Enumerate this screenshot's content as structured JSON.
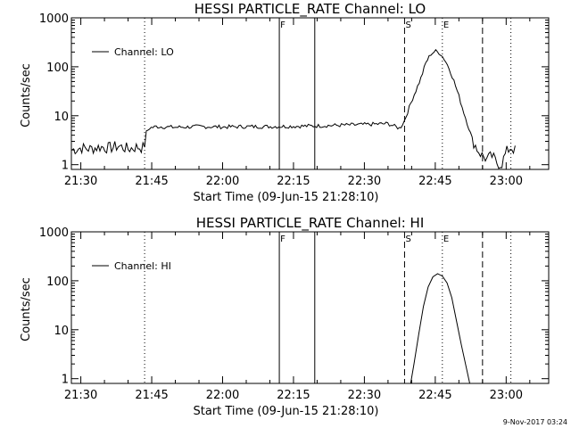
{
  "footer": {
    "date_stamp": "9-Nov-2017 03:24"
  },
  "colors": {
    "background": "#ffffff",
    "foreground": "#000000"
  },
  "chart_data": [
    {
      "type": "line",
      "title": "HESSI PARTICLE_RATE Channel: LO",
      "xlabel": "Start Time (09-Jun-15 21:28:10)",
      "ylabel": "Counts/sec",
      "y_scale": "log",
      "xlim": [
        "21:28",
        "23:09"
      ],
      "ylim": [
        0.8,
        1000
      ],
      "x_tick_labels": [
        "21:30",
        "21:45",
        "22:00",
        "22:15",
        "22:30",
        "22:45",
        "23:00"
      ],
      "y_tick_labels": [
        "1",
        "10",
        "100",
        "1000"
      ],
      "legend": {
        "position": "top-left",
        "entries": [
          "Channel: LO"
        ]
      },
      "markers": [
        {
          "label": "",
          "time": "21:43.5",
          "style": "dotted"
        },
        {
          "label": "F",
          "time": "22:12",
          "style": "solid"
        },
        {
          "label": "",
          "time": "22:19.5",
          "style": "solid"
        },
        {
          "label": "S",
          "time": "22:38.5",
          "style": "dashed"
        },
        {
          "label": "E",
          "time": "22:46.5",
          "style": "dotted"
        },
        {
          "label": "",
          "time": "22:55",
          "style": "dashed"
        },
        {
          "label": "",
          "time": "23:01",
          "style": "dotted"
        }
      ],
      "series": [
        {
          "name": "Channel: LO",
          "x": [
            "21:28.1",
            "21:30",
            "21:32",
            "21:34",
            "21:36",
            "21:38",
            "21:40",
            "21:42",
            "21:43.4",
            "21:43.8",
            "21:44.5",
            "21:46",
            "21:50",
            "21:55",
            "22:00",
            "22:05",
            "22:10",
            "22:15",
            "22:20",
            "22:25",
            "22:30",
            "22:35",
            "22:37.5",
            "22:38.5",
            "22:40",
            "22:42",
            "22:43",
            "22:44",
            "22:45",
            "22:46",
            "22:47",
            "22:48",
            "22:49",
            "22:50",
            "22:51",
            "22:52",
            "22:53",
            "22:54",
            "22:55",
            "22:56",
            "22:57",
            "22:58",
            "22:59",
            "23:00",
            "23:01",
            "23:02"
          ],
          "y": [
            2.0,
            2.2,
            2.1,
            2.3,
            2.2,
            2.4,
            2.1,
            2.3,
            2.2,
            4.5,
            5.6,
            6.0,
            5.8,
            6.0,
            5.9,
            6.0,
            6.0,
            6.1,
            6.2,
            6.4,
            6.6,
            6.9,
            5.5,
            8.0,
            20,
            60,
            120,
            180,
            210,
            190,
            140,
            90,
            50,
            25,
            12,
            6,
            3,
            2,
            1.5,
            1.3,
            1.5,
            1.1,
            1.0,
            1.8,
            2.3,
            1.9
          ],
          "noise": "small high-frequency fluctuation around each value"
        }
      ]
    },
    {
      "type": "line",
      "title": "HESSI PARTICLE_RATE Channel: HI",
      "xlabel": "Start Time (09-Jun-15 21:28:10)",
      "ylabel": "Counts/sec",
      "y_scale": "log",
      "xlim": [
        "21:28",
        "23:09"
      ],
      "ylim": [
        0.8,
        1000
      ],
      "x_tick_labels": [
        "21:30",
        "21:45",
        "22:00",
        "22:15",
        "22:30",
        "22:45",
        "23:00"
      ],
      "y_tick_labels": [
        "1",
        "10",
        "100",
        "1000"
      ],
      "legend": {
        "position": "top-left",
        "entries": [
          "Channel: HI"
        ]
      },
      "markers": [
        {
          "label": "",
          "time": "21:43.5",
          "style": "dotted"
        },
        {
          "label": "F",
          "time": "22:12",
          "style": "solid"
        },
        {
          "label": "",
          "time": "22:19.5",
          "style": "solid"
        },
        {
          "label": "S",
          "time": "22:38.5",
          "style": "dashed"
        },
        {
          "label": "E",
          "time": "22:46.5",
          "style": "dotted"
        },
        {
          "label": "",
          "time": "22:55",
          "style": "dashed"
        },
        {
          "label": "",
          "time": "23:01",
          "style": "dotted"
        }
      ],
      "series": [
        {
          "name": "Channel: HI",
          "x": [
            "22:39.8",
            "22:40.5",
            "22:41.5",
            "22:42.5",
            "22:43.5",
            "22:44.5",
            "22:45.5",
            "22:46.5",
            "22:47.5",
            "22:48.5",
            "22:49.5",
            "22:50.5",
            "22:51.5",
            "22:52.3"
          ],
          "y": [
            0.8,
            2,
            8,
            30,
            75,
            120,
            140,
            125,
            90,
            45,
            15,
            5,
            1.8,
            0.8
          ]
        }
      ]
    }
  ]
}
